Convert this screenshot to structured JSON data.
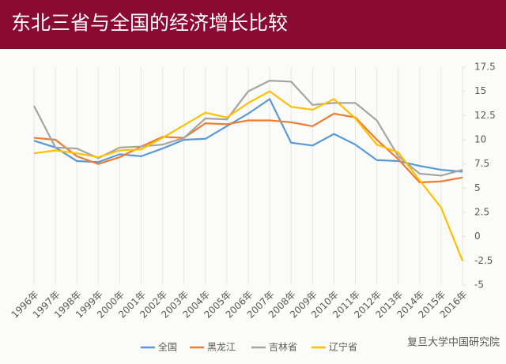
{
  "chart_data": {
    "type": "line",
    "title": "东北三省与全国的经济增长比较",
    "categories": [
      "1996年",
      "1997年",
      "1998年",
      "1999年",
      "2000年",
      "2001年",
      "2002年",
      "2003年",
      "2004年",
      "2005年",
      "2006年",
      "2007年",
      "2008年",
      "2009年",
      "2010年",
      "2011年",
      "2012年",
      "2013年",
      "2014年",
      "2015年",
      "2016年"
    ],
    "series": [
      {
        "name": "全国",
        "color": "#5b9bd5",
        "values": [
          9.9,
          9.2,
          7.8,
          7.7,
          8.5,
          8.3,
          9.1,
          10.0,
          10.1,
          11.4,
          12.7,
          14.2,
          9.7,
          9.4,
          10.6,
          9.5,
          7.9,
          7.8,
          7.3,
          6.9,
          6.7
        ]
      },
      {
        "name": "黑龙江",
        "color": "#ed7d31",
        "values": [
          10.2,
          10.0,
          8.3,
          7.5,
          8.2,
          9.3,
          10.3,
          10.2,
          11.7,
          11.6,
          12.0,
          12.0,
          11.8,
          11.4,
          12.7,
          12.3,
          10.0,
          8.0,
          5.6,
          5.7,
          6.1
        ]
      },
      {
        "name": "吉林省",
        "color": "#a5a5a5",
        "values": [
          13.5,
          9.2,
          9.1,
          8.1,
          9.2,
          9.3,
          9.5,
          10.2,
          12.2,
          12.1,
          15.0,
          16.1,
          16.0,
          13.6,
          13.8,
          13.8,
          12.0,
          8.3,
          6.5,
          6.3,
          6.9
        ]
      },
      {
        "name": "辽宁省",
        "color": "#ffc000",
        "values": [
          8.6,
          8.9,
          8.6,
          8.2,
          8.9,
          9.0,
          10.2,
          11.5,
          12.8,
          12.3,
          13.8,
          15.0,
          13.4,
          13.1,
          14.2,
          12.2,
          9.5,
          8.7,
          5.8,
          3.0,
          -2.5
        ]
      }
    ],
    "ylim": [
      -5,
      17.5
    ],
    "yticks": [
      -5,
      {
        "value": -2.5,
        "label": "-2.5"
      },
      0,
      {
        "value": 2.5,
        "label": "2.5"
      },
      5,
      {
        "value": 7.5,
        "label": "7.5"
      },
      10,
      {
        "value": 12.5,
        "label": "12.5"
      },
      15,
      {
        "value": 17.5,
        "label": "17.5"
      }
    ],
    "legend": "bottom",
    "watermark": "复旦大学中国研究院"
  }
}
